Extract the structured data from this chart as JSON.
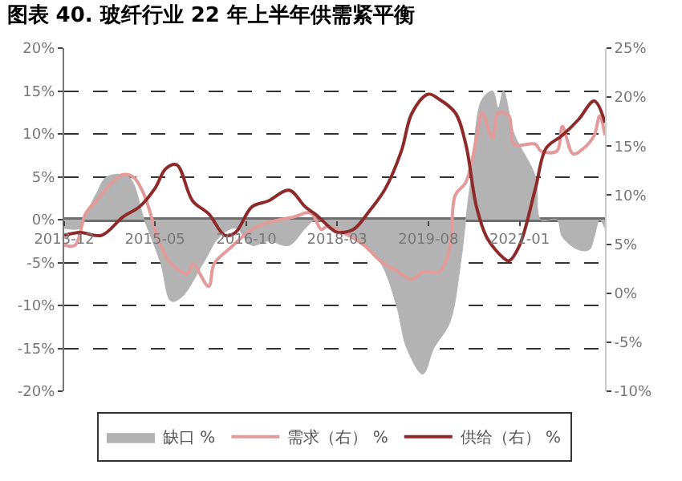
{
  "chart_data": {
    "type": "line",
    "title": "图表 40. 玻纤行业 22 年上半年供需紧平衡",
    "series": [
      {
        "name": "缺口 %",
        "type": "area",
        "color": "#b3b3b3",
        "x": [
          "2013-12",
          "2014-03",
          "2014-04",
          "2014-06",
          "2014-08",
          "2014-12",
          "2015-03",
          "2015-06",
          "2015-08",
          "2015-10",
          "2016-02",
          "2016-05",
          "2016-08",
          "2016-11",
          "2017-02",
          "2017-06",
          "2017-09",
          "2017-11",
          "2018-02",
          "2018-06",
          "2018-11",
          "2019-02",
          "2019-04",
          "2019-07",
          "2019-09",
          "2019-12",
          "2020-02",
          "2020-03",
          "2020-04",
          "2020-06",
          "2020-08",
          "2020-09",
          "2020-10",
          "2020-12",
          "2021-04",
          "2021-05",
          "2021-08",
          "2021-09",
          "2021-12",
          "2022-02",
          "2022-03",
          "2022-04",
          "2022-05"
        ],
        "values": [
          -1,
          -1,
          0.5,
          3,
          5,
          5,
          0,
          -5,
          -9.5,
          -9,
          -5,
          -2,
          -1,
          -3,
          -2.5,
          -3,
          -1,
          0,
          -1,
          -2,
          -5,
          -10,
          -15,
          -18,
          -15,
          -12,
          -5,
          0,
          5,
          14,
          15,
          13,
          15,
          10,
          5,
          0,
          0,
          -2,
          -3.5,
          -3.5,
          -2,
          0,
          -1
        ]
      },
      {
        "name": "需求（右） %",
        "color": "#e39a9a",
        "axis": "y2",
        "x": [
          "2013-12",
          "2014-02",
          "2014-04",
          "2014-06",
          "2014-09",
          "2014-11",
          "2015-01",
          "2015-03",
          "2015-06",
          "2015-08",
          "2015-11",
          "2015-12",
          "2016-03",
          "2016-04",
          "2016-07",
          "2016-11",
          "2017-02",
          "2017-07",
          "2017-10",
          "2017-12",
          "2018-01",
          "2018-04",
          "2018-08",
          "2018-11",
          "2019-02",
          "2019-05",
          "2019-07",
          "2019-10",
          "2019-12",
          "2020-01",
          "2020-03",
          "2020-05",
          "2020-06",
          "2020-08",
          "2020-09",
          "2020-11",
          "2020-12",
          "2021-04",
          "2021-05",
          "2021-08",
          "2021-09",
          "2021-11",
          "2022-01",
          "2022-03",
          "2022-04",
          "2022-05"
        ],
        "values": [
          4.9,
          4.9,
          8.1,
          9.4,
          11.3,
          12.1,
          11.8,
          10,
          4.9,
          3,
          2,
          3,
          0.7,
          3,
          4.6,
          6.5,
          7.2,
          7.8,
          8.2,
          6.5,
          6.8,
          6.2,
          4.9,
          3.3,
          2.3,
          1.4,
          2.2,
          2.2,
          4.6,
          10,
          11.3,
          15.8,
          18.4,
          15.8,
          18.4,
          18.1,
          15.2,
          15.2,
          14.5,
          14.5,
          17,
          14.2,
          14.8,
          16.1,
          18.1,
          16.1
        ]
      },
      {
        "name": "供给（右） %",
        "color": "#8e2a2a",
        "axis": "y2",
        "x": [
          "2013-12",
          "2014-03",
          "2014-07",
          "2014-11",
          "2015-02",
          "2015-05",
          "2015-07",
          "2015-09",
          "2015-12",
          "2016-03",
          "2016-06",
          "2016-08",
          "2016-11",
          "2017-02",
          "2017-06",
          "2017-09",
          "2017-11",
          "2018-02",
          "2018-03",
          "2018-06",
          "2018-09",
          "2018-12",
          "2019-03",
          "2019-05",
          "2019-08",
          "2019-10",
          "2020-01",
          "2020-03",
          "2020-05",
          "2020-07",
          "2020-10",
          "2020-11",
          "2021-01",
          "2021-04",
          "2021-06",
          "2021-09",
          "2021-12",
          "2022-03",
          "2022-05"
        ],
        "values": [
          5.9,
          6.2,
          5.9,
          7.8,
          8.8,
          10.7,
          12.7,
          13.1,
          9.4,
          8.1,
          5.9,
          6.2,
          8.8,
          9.4,
          10.5,
          8.8,
          8,
          6.5,
          6.2,
          6.5,
          8.4,
          10.7,
          14.5,
          18.4,
          20.3,
          19.8,
          18.4,
          15.2,
          8.8,
          5.6,
          3.6,
          3.3,
          4.9,
          10.7,
          14.8,
          16.1,
          17.7,
          19.6,
          17.4
        ]
      }
    ],
    "xlim": [
      "2013-12",
      "2022-05"
    ],
    "xticks": [
      {
        "value": "2013-12",
        "label": "2013-12"
      },
      {
        "value": "2015-05",
        "label": "2015-05"
      },
      {
        "value": "2016-10",
        "label": "2016-10"
      },
      {
        "value": "2018-03",
        "label": "2018-03"
      },
      {
        "value": "2019-08",
        "label": "2019-08"
      },
      {
        "value": "2021-01",
        "label": "2021-01"
      }
    ],
    "ylim": [
      -20,
      20
    ],
    "yticks": [
      {
        "value": -20,
        "label": "-20%"
      },
      {
        "value": -15,
        "label": "-15%"
      },
      {
        "value": -10,
        "label": "-10%"
      },
      {
        "value": -5,
        "label": "-5%"
      },
      {
        "value": 0,
        "label": "0%"
      },
      {
        "value": 5,
        "label": "5%"
      },
      {
        "value": 10,
        "label": "10%"
      },
      {
        "value": 15,
        "label": "15%"
      },
      {
        "value": 20,
        "label": "20%"
      }
    ],
    "y2lim": [
      -10,
      25
    ],
    "y2ticks": [
      {
        "value": -10,
        "label": "-10%"
      },
      {
        "value": -5,
        "label": "-5%"
      },
      {
        "value": 0,
        "label": "0%"
      },
      {
        "value": 5,
        "label": "5%"
      },
      {
        "value": 10,
        "label": "10%"
      },
      {
        "value": 15,
        "label": "15%"
      },
      {
        "value": 20,
        "label": "20%"
      },
      {
        "value": 25,
        "label": "25%"
      }
    ],
    "grid": "y",
    "legend": "bottom",
    "marker": "none",
    "line_style": "solid"
  }
}
